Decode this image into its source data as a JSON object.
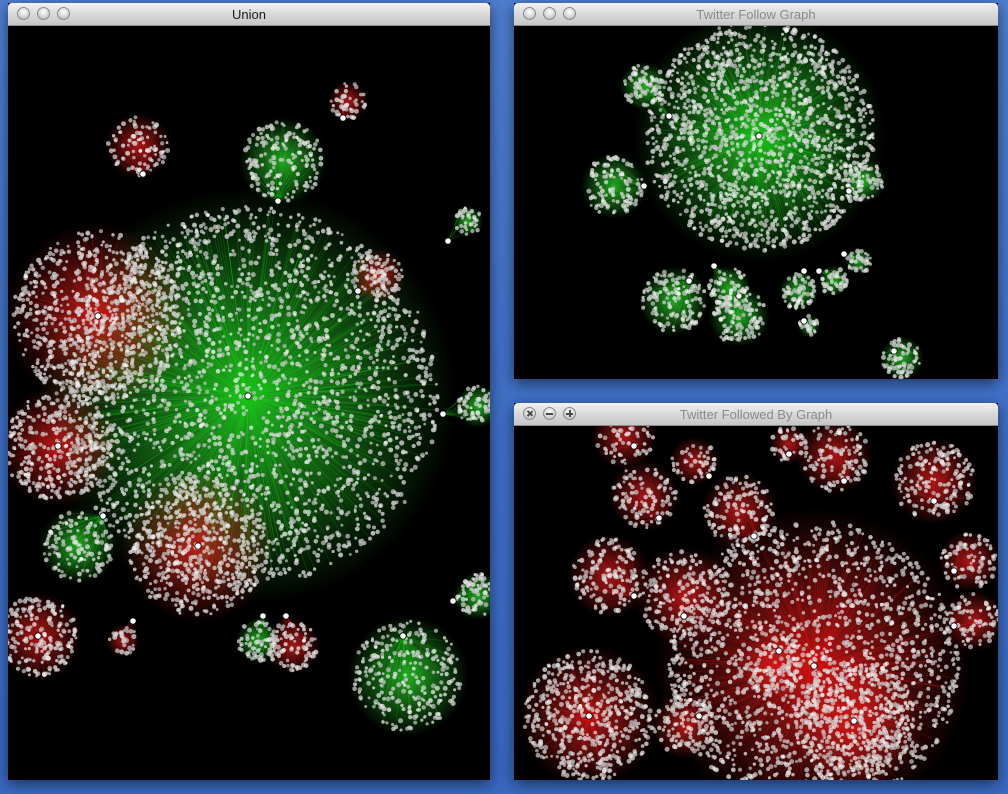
{
  "windows": [
    {
      "id": "union",
      "title": "Union",
      "active": true
    },
    {
      "id": "follow",
      "title": "Twitter Follow Graph",
      "active": false
    },
    {
      "id": "followed",
      "title": "Twitter Followed By Graph",
      "active": false
    }
  ],
  "colors": {
    "desktop": "#3f6fc6",
    "canvas": "#000000",
    "node": "#d8d8d8",
    "follow_edge": "#22cc22",
    "followed_by_edge": "#dd1111"
  }
}
